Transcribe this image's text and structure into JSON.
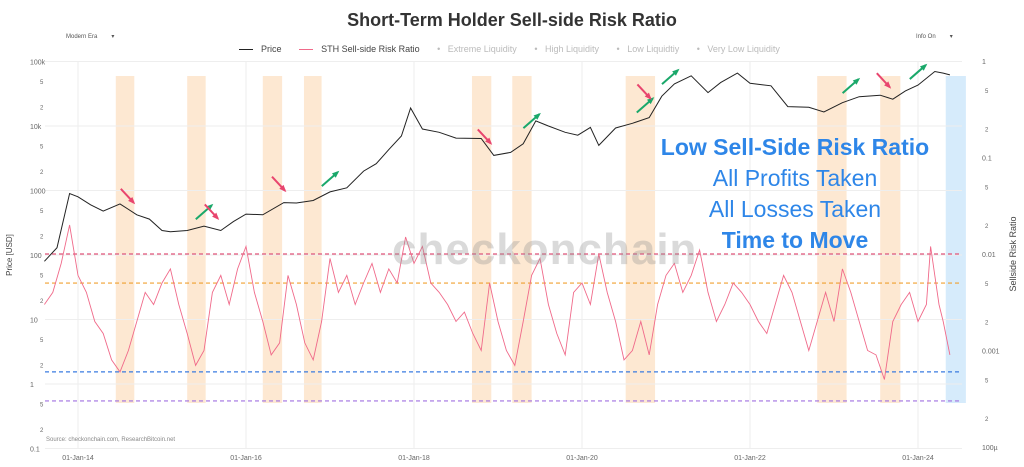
{
  "title": "Short-Term Holder Sell-side Risk Ratio",
  "controls": {
    "era_select": "Modern Era",
    "info_select": "Info On"
  },
  "legend": [
    {
      "label": "Price",
      "color": "#222222",
      "active": true
    },
    {
      "label": "STH Sell-side Risk Ratio",
      "color": "#f06a8a",
      "active": true
    },
    {
      "label": "Extreme Liquidity",
      "active": false
    },
    {
      "label": "High Liquidity",
      "active": false
    },
    {
      "label": "Low Liquidtiy",
      "active": false
    },
    {
      "label": "Very Low Liquidity",
      "active": false
    }
  ],
  "annotation": {
    "line1": "Low Sell-Side Risk Ratio",
    "line2": "All Profits Taken",
    "line3": "All Losses Taken",
    "line4": "Time to Move",
    "color": "#2e86e8"
  },
  "watermark": "checkonchain",
  "source": "Source: checkonchain.com, ResearchBitcoin.net",
  "chart_data": {
    "type": "line",
    "title": "Short-Term Holder Sell-side Risk Ratio",
    "y_left": {
      "label": "Price [USD]",
      "scale": "log",
      "range": [
        0.1,
        100000
      ],
      "ticks": [
        "0.1",
        "2",
        "5",
        "1",
        "2",
        "5",
        "10",
        "2",
        "5",
        "100",
        "2",
        "5",
        "1000",
        "2",
        "5",
        "10k",
        "2",
        "5",
        "100k"
      ]
    },
    "y_right": {
      "label": "Sellside Risk Ratio",
      "scale": "log",
      "range": [
        0.0001,
        1
      ],
      "ticks": [
        "100µ",
        "2",
        "5",
        "0.001",
        "2",
        "5",
        "0.01",
        "2",
        "5",
        "0.1",
        "2",
        "5",
        "1"
      ]
    },
    "x": {
      "ticks": [
        "01-Jan-14",
        "01-Jan-16",
        "01-Jan-18",
        "01-Jan-20",
        "01-Jan-22",
        "01-Jan-24"
      ]
    },
    "thresholds": [
      {
        "value": 0.01,
        "color": "#e0557a"
      },
      {
        "value": 0.005,
        "color": "#f0a030"
      },
      {
        "value": 0.0006,
        "color": "#3a7be0"
      },
      {
        "value": 0.0003,
        "color": "#a070e0"
      }
    ],
    "highlight_bands": [
      {
        "from": 2014.45,
        "to": 2014.67,
        "color": "#fde8d2"
      },
      {
        "from": 2015.3,
        "to": 2015.52,
        "color": "#fde8d2"
      },
      {
        "from": 2016.2,
        "to": 2016.43,
        "color": "#fde8d2"
      },
      {
        "from": 2016.69,
        "to": 2016.9,
        "color": "#fde8d2"
      },
      {
        "from": 2018.69,
        "to": 2018.92,
        "color": "#fde8d2"
      },
      {
        "from": 2019.17,
        "to": 2019.4,
        "color": "#fde8d2"
      },
      {
        "from": 2020.52,
        "to": 2020.87,
        "color": "#fde8d2"
      },
      {
        "from": 2022.8,
        "to": 2023.15,
        "color": "#fde8d2"
      },
      {
        "from": 2023.55,
        "to": 2023.79,
        "color": "#fde8d2"
      },
      {
        "from": 2024.33,
        "to": 2024.57,
        "color": "#d6ebfb"
      }
    ],
    "series": [
      {
        "name": "Price",
        "axis": "left",
        "color": "#222222",
        "points": [
          [
            2013.6,
            80
          ],
          [
            2013.75,
            130
          ],
          [
            2013.9,
            900
          ],
          [
            2014.0,
            800
          ],
          [
            2014.15,
            600
          ],
          [
            2014.3,
            480
          ],
          [
            2014.5,
            620
          ],
          [
            2014.7,
            420
          ],
          [
            2014.85,
            360
          ],
          [
            2015.0,
            240
          ],
          [
            2015.1,
            230
          ],
          [
            2015.3,
            240
          ],
          [
            2015.5,
            280
          ],
          [
            2015.7,
            240
          ],
          [
            2015.85,
            330
          ],
          [
            2016.0,
            430
          ],
          [
            2016.2,
            420
          ],
          [
            2016.45,
            650
          ],
          [
            2016.6,
            640
          ],
          [
            2016.8,
            700
          ],
          [
            2017.0,
            950
          ],
          [
            2017.2,
            1100
          ],
          [
            2017.4,
            2000
          ],
          [
            2017.55,
            2600
          ],
          [
            2017.7,
            4300
          ],
          [
            2017.85,
            7000
          ],
          [
            2017.96,
            19000
          ],
          [
            2018.1,
            9000
          ],
          [
            2018.3,
            8000
          ],
          [
            2018.5,
            6500
          ],
          [
            2018.8,
            6400
          ],
          [
            2018.95,
            3500
          ],
          [
            2019.15,
            3900
          ],
          [
            2019.3,
            5300
          ],
          [
            2019.45,
            12000
          ],
          [
            2019.6,
            10000
          ],
          [
            2019.8,
            8000
          ],
          [
            2019.95,
            7200
          ],
          [
            2020.1,
            9500
          ],
          [
            2020.2,
            5000
          ],
          [
            2020.4,
            9300
          ],
          [
            2020.6,
            11000
          ],
          [
            2020.8,
            13500
          ],
          [
            2020.95,
            29000
          ],
          [
            2021.1,
            45000
          ],
          [
            2021.3,
            60000
          ],
          [
            2021.5,
            33000
          ],
          [
            2021.65,
            47000
          ],
          [
            2021.85,
            66000
          ],
          [
            2022.0,
            46000
          ],
          [
            2022.25,
            42000
          ],
          [
            2022.45,
            20000
          ],
          [
            2022.7,
            19500
          ],
          [
            2022.88,
            16500
          ],
          [
            2023.1,
            23000
          ],
          [
            2023.3,
            28500
          ],
          [
            2023.55,
            30000
          ],
          [
            2023.7,
            26000
          ],
          [
            2023.85,
            35000
          ],
          [
            2024.0,
            43000
          ],
          [
            2024.2,
            70000
          ],
          [
            2024.3,
            66000
          ],
          [
            2024.38,
            62000
          ]
        ]
      },
      {
        "name": "STH Sell-side Risk Ratio",
        "axis": "right",
        "color": "#f06a8a",
        "points": [
          [
            2013.6,
            0.003
          ],
          [
            2013.7,
            0.004
          ],
          [
            2013.8,
            0.008
          ],
          [
            2013.9,
            0.02
          ],
          [
            2014.0,
            0.006
          ],
          [
            2014.1,
            0.004
          ],
          [
            2014.2,
            0.002
          ],
          [
            2014.3,
            0.0015
          ],
          [
            2014.4,
            0.0008
          ],
          [
            2014.5,
            0.0006
          ],
          [
            2014.6,
            0.001
          ],
          [
            2014.7,
            0.002
          ],
          [
            2014.8,
            0.004
          ],
          [
            2014.9,
            0.003
          ],
          [
            2015.0,
            0.005
          ],
          [
            2015.1,
            0.007
          ],
          [
            2015.2,
            0.003
          ],
          [
            2015.3,
            0.0015
          ],
          [
            2015.4,
            0.0007
          ],
          [
            2015.5,
            0.001
          ],
          [
            2015.6,
            0.004
          ],
          [
            2015.7,
            0.006
          ],
          [
            2015.8,
            0.003
          ],
          [
            2015.9,
            0.007
          ],
          [
            2016.0,
            0.012
          ],
          [
            2016.1,
            0.004
          ],
          [
            2016.2,
            0.002
          ],
          [
            2016.3,
            0.0009
          ],
          [
            2016.4,
            0.0012
          ],
          [
            2016.5,
            0.006
          ],
          [
            2016.6,
            0.003
          ],
          [
            2016.7,
            0.0012
          ],
          [
            2016.8,
            0.0008
          ],
          [
            2016.9,
            0.002
          ],
          [
            2017.0,
            0.009
          ],
          [
            2017.1,
            0.004
          ],
          [
            2017.2,
            0.006
          ],
          [
            2017.3,
            0.003
          ],
          [
            2017.4,
            0.005
          ],
          [
            2017.5,
            0.008
          ],
          [
            2017.6,
            0.004
          ],
          [
            2017.7,
            0.007
          ],
          [
            2017.8,
            0.005
          ],
          [
            2017.9,
            0.015
          ],
          [
            2018.0,
            0.008
          ],
          [
            2018.1,
            0.012
          ],
          [
            2018.2,
            0.005
          ],
          [
            2018.3,
            0.004
          ],
          [
            2018.4,
            0.003
          ],
          [
            2018.5,
            0.002
          ],
          [
            2018.6,
            0.0025
          ],
          [
            2018.7,
            0.0015
          ],
          [
            2018.8,
            0.001
          ],
          [
            2018.9,
            0.005
          ],
          [
            2019.0,
            0.002
          ],
          [
            2019.1,
            0.001
          ],
          [
            2019.2,
            0.0007
          ],
          [
            2019.3,
            0.002
          ],
          [
            2019.4,
            0.006
          ],
          [
            2019.5,
            0.009
          ],
          [
            2019.6,
            0.003
          ],
          [
            2019.7,
            0.0015
          ],
          [
            2019.8,
            0.0009
          ],
          [
            2019.9,
            0.004
          ],
          [
            2020.0,
            0.005
          ],
          [
            2020.1,
            0.003
          ],
          [
            2020.2,
            0.01
          ],
          [
            2020.3,
            0.004
          ],
          [
            2020.4,
            0.002
          ],
          [
            2020.5,
            0.0008
          ],
          [
            2020.6,
            0.001
          ],
          [
            2020.7,
            0.002
          ],
          [
            2020.8,
            0.0009
          ],
          [
            2020.9,
            0.003
          ],
          [
            2021.0,
            0.006
          ],
          [
            2021.1,
            0.008
          ],
          [
            2021.2,
            0.004
          ],
          [
            2021.3,
            0.006
          ],
          [
            2021.4,
            0.011
          ],
          [
            2021.5,
            0.004
          ],
          [
            2021.6,
            0.002
          ],
          [
            2021.7,
            0.003
          ],
          [
            2021.8,
            0.005
          ],
          [
            2021.9,
            0.004
          ],
          [
            2022.0,
            0.003
          ],
          [
            2022.1,
            0.002
          ],
          [
            2022.2,
            0.0015
          ],
          [
            2022.3,
            0.003
          ],
          [
            2022.4,
            0.006
          ],
          [
            2022.5,
            0.004
          ],
          [
            2022.6,
            0.002
          ],
          [
            2022.7,
            0.001
          ],
          [
            2022.8,
            0.002
          ],
          [
            2022.9,
            0.004
          ],
          [
            2023.0,
            0.002
          ],
          [
            2023.1,
            0.007
          ],
          [
            2023.2,
            0.004
          ],
          [
            2023.3,
            0.002
          ],
          [
            2023.4,
            0.001
          ],
          [
            2023.5,
            0.0009
          ],
          [
            2023.6,
            0.0005
          ],
          [
            2023.7,
            0.002
          ],
          [
            2023.8,
            0.003
          ],
          [
            2023.9,
            0.004
          ],
          [
            2024.0,
            0.002
          ],
          [
            2024.1,
            0.003
          ],
          [
            2024.15,
            0.012
          ],
          [
            2024.2,
            0.006
          ],
          [
            2024.25,
            0.003
          ],
          [
            2024.3,
            0.002
          ],
          [
            2024.38,
            0.0009
          ]
        ]
      }
    ],
    "arrows": [
      {
        "type": "down",
        "color": "#e8456e",
        "at": 2014.7
      },
      {
        "type": "up",
        "color": "#1aa86a",
        "at": 2015.45
      },
      {
        "type": "down",
        "color": "#e8456e",
        "at": 2015.7
      },
      {
        "type": "down",
        "color": "#e8456e",
        "at": 2016.5
      },
      {
        "type": "up",
        "color": "#1aa86a",
        "at": 2016.95
      },
      {
        "type": "down",
        "color": "#e8456e",
        "at": 2018.95
      },
      {
        "type": "up",
        "color": "#1aa86a",
        "at": 2019.35
      },
      {
        "type": "up",
        "color": "#1aa86a",
        "at": 2020.7
      },
      {
        "type": "down",
        "color": "#e8456e",
        "at": 2020.85
      },
      {
        "type": "up",
        "color": "#1aa86a",
        "at": 2021.0
      },
      {
        "type": "up",
        "color": "#1aa86a",
        "at": 2023.15
      },
      {
        "type": "down",
        "color": "#e8456e",
        "at": 2023.7
      },
      {
        "type": "up",
        "color": "#1aa86a",
        "at": 2023.95
      }
    ]
  }
}
